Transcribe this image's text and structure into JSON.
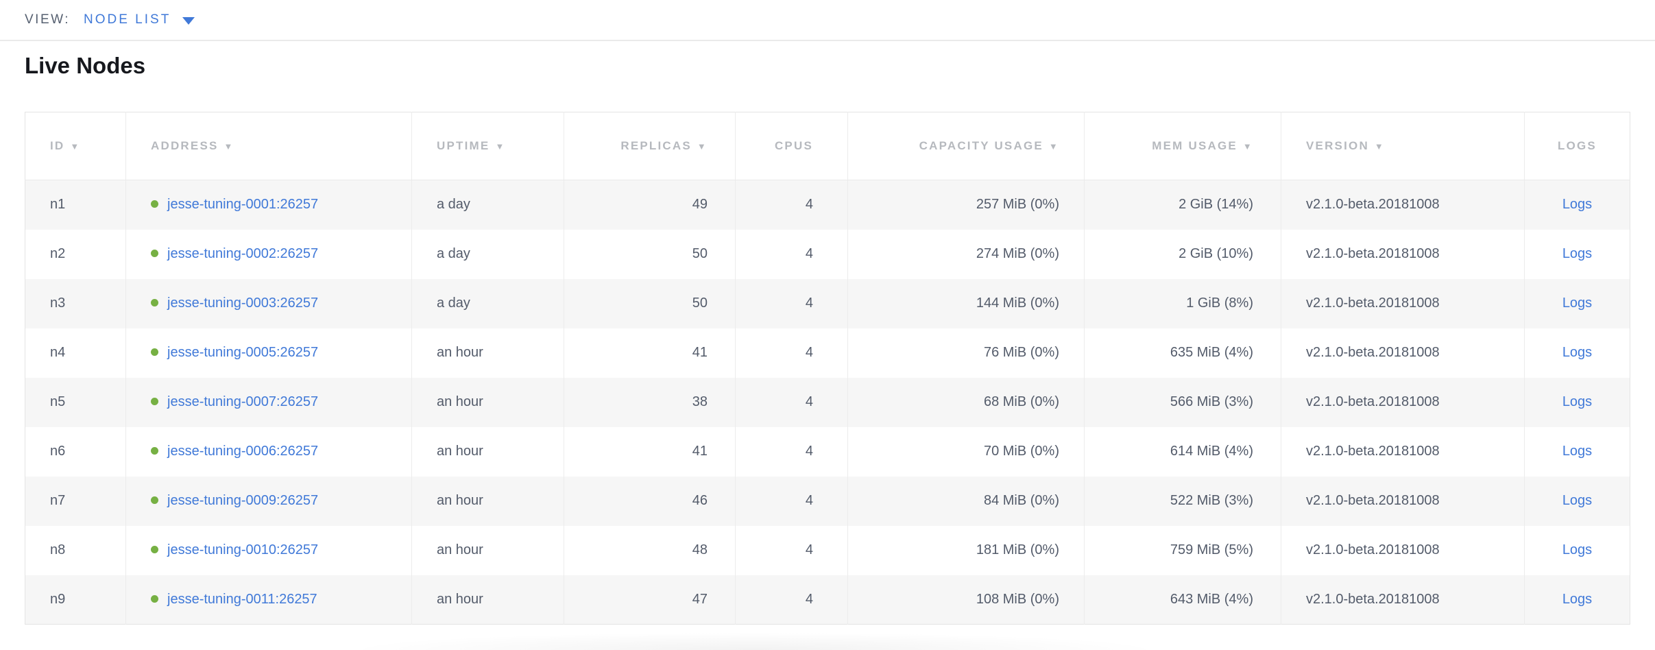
{
  "view_bar": {
    "label": "VIEW:",
    "selected": "NODE LIST"
  },
  "page": {
    "title": "Live Nodes"
  },
  "icons": {
    "sort_arrow_glyph": "▼",
    "dropdown_caret": "triangle-down",
    "status_dot": "green-circle"
  },
  "colors": {
    "link_blue": "#4079d8",
    "healthy_green": "#76b043",
    "header_text": "#b6b9be",
    "cell_text": "#535b6a",
    "view_label": "#566070",
    "title_text": "#16181d",
    "row_alt_bg": "#f6f6f6",
    "table_border": "#e4e4e4",
    "cell_divider": "#ececec"
  },
  "table": {
    "columns": [
      {
        "key": "id",
        "label": "ID",
        "sortable": true,
        "align": "left"
      },
      {
        "key": "address",
        "label": "ADDRESS",
        "sortable": true,
        "align": "left"
      },
      {
        "key": "uptime",
        "label": "UPTIME",
        "sortable": true,
        "align": "left"
      },
      {
        "key": "replicas",
        "label": "REPLICAS",
        "sortable": true,
        "align": "right"
      },
      {
        "key": "cpus",
        "label": "CPUS",
        "sortable": false,
        "align": "right"
      },
      {
        "key": "capacity",
        "label": "CAPACITY USAGE",
        "sortable": true,
        "align": "right"
      },
      {
        "key": "mem",
        "label": "MEM USAGE",
        "sortable": true,
        "align": "right"
      },
      {
        "key": "version",
        "label": "VERSION",
        "sortable": true,
        "align": "left"
      },
      {
        "key": "logs",
        "label": "LOGS",
        "sortable": false,
        "align": "center"
      }
    ],
    "rows": [
      {
        "id": "n1",
        "address": "jesse-tuning-0001:26257",
        "uptime": "a day",
        "replicas": "49",
        "cpus": "4",
        "capacity": "257 MiB (0%)",
        "mem": "2 GiB (14%)",
        "version": "v2.1.0-beta.20181008",
        "logs": "Logs"
      },
      {
        "id": "n2",
        "address": "jesse-tuning-0002:26257",
        "uptime": "a day",
        "replicas": "50",
        "cpus": "4",
        "capacity": "274 MiB (0%)",
        "mem": "2 GiB (10%)",
        "version": "v2.1.0-beta.20181008",
        "logs": "Logs"
      },
      {
        "id": "n3",
        "address": "jesse-tuning-0003:26257",
        "uptime": "a day",
        "replicas": "50",
        "cpus": "4",
        "capacity": "144 MiB (0%)",
        "mem": "1 GiB (8%)",
        "version": "v2.1.0-beta.20181008",
        "logs": "Logs"
      },
      {
        "id": "n4",
        "address": "jesse-tuning-0005:26257",
        "uptime": "an hour",
        "replicas": "41",
        "cpus": "4",
        "capacity": "76 MiB (0%)",
        "mem": "635 MiB (4%)",
        "version": "v2.1.0-beta.20181008",
        "logs": "Logs"
      },
      {
        "id": "n5",
        "address": "jesse-tuning-0007:26257",
        "uptime": "an hour",
        "replicas": "38",
        "cpus": "4",
        "capacity": "68 MiB (0%)",
        "mem": "566 MiB (3%)",
        "version": "v2.1.0-beta.20181008",
        "logs": "Logs"
      },
      {
        "id": "n6",
        "address": "jesse-tuning-0006:26257",
        "uptime": "an hour",
        "replicas": "41",
        "cpus": "4",
        "capacity": "70 MiB (0%)",
        "mem": "614 MiB (4%)",
        "version": "v2.1.0-beta.20181008",
        "logs": "Logs"
      },
      {
        "id": "n7",
        "address": "jesse-tuning-0009:26257",
        "uptime": "an hour",
        "replicas": "46",
        "cpus": "4",
        "capacity": "84 MiB (0%)",
        "mem": "522 MiB (3%)",
        "version": "v2.1.0-beta.20181008",
        "logs": "Logs"
      },
      {
        "id": "n8",
        "address": "jesse-tuning-0010:26257",
        "uptime": "an hour",
        "replicas": "48",
        "cpus": "4",
        "capacity": "181 MiB (0%)",
        "mem": "759 MiB (5%)",
        "version": "v2.1.0-beta.20181008",
        "logs": "Logs"
      },
      {
        "id": "n9",
        "address": "jesse-tuning-0011:26257",
        "uptime": "an hour",
        "replicas": "47",
        "cpus": "4",
        "capacity": "108 MiB (0%)",
        "mem": "643 MiB (4%)",
        "version": "v2.1.0-beta.20181008",
        "logs": "Logs"
      }
    ]
  }
}
